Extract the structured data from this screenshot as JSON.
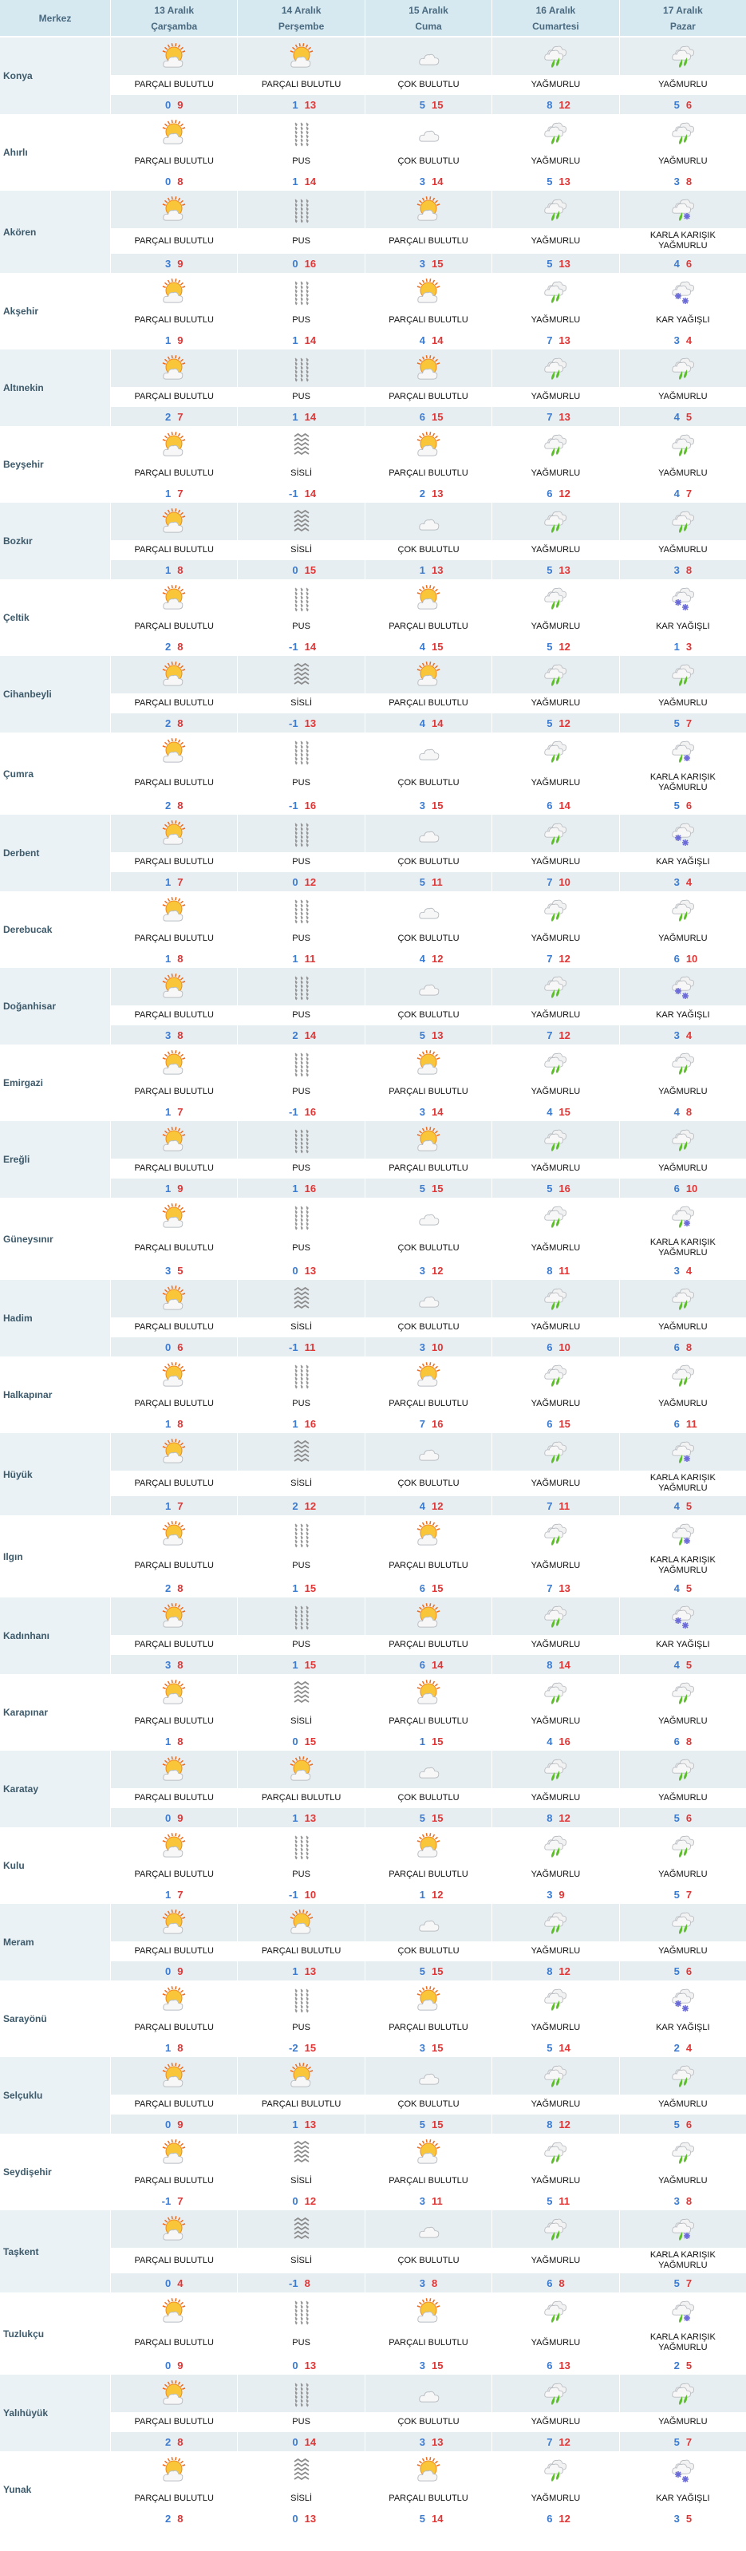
{
  "header": {
    "location_label": "Merkez",
    "days": [
      {
        "date": "13 Aralık",
        "weekday": "Çarşamba"
      },
      {
        "date": "14 Aralık",
        "weekday": "Perşembe"
      },
      {
        "date": "15 Aralık",
        "weekday": "Cuma"
      },
      {
        "date": "16 Aralık",
        "weekday": "Cumartesi"
      },
      {
        "date": "17 Aralık",
        "weekday": "Pazar"
      }
    ]
  },
  "conditions": {
    "P": {
      "desc": "PARÇALI BULUTLU",
      "icon": "partly-cloudy-icon"
    },
    "C": {
      "desc": "ÇOK BULUTLU",
      "icon": "cloudy-icon"
    },
    "U": {
      "desc": "PUS",
      "icon": "haze-icon"
    },
    "S": {
      "desc": "SİSLİ",
      "icon": "fog-icon"
    },
    "Y": {
      "desc": "YAĞMURLU",
      "icon": "rain-icon"
    },
    "K": {
      "desc": "KARLA KARIŞIK YAĞMURLU",
      "icon": "sleet-icon"
    },
    "R": {
      "desc": "KAR YAĞIŞLI",
      "icon": "snow-icon"
    }
  },
  "colors": {
    "min_temp": "#3b7bd0",
    "max_temp": "#e03636",
    "header_bg": "#d6e8f0",
    "alt_row_bg": "#e7eef2"
  },
  "rows": [
    {
      "name": "Konya",
      "days": [
        [
          "P",
          0,
          9
        ],
        [
          "P",
          1,
          13
        ],
        [
          "C",
          5,
          15
        ],
        [
          "Y",
          8,
          12
        ],
        [
          "Y",
          5,
          6
        ]
      ]
    },
    {
      "name": "Ahırlı",
      "days": [
        [
          "P",
          0,
          8
        ],
        [
          "U",
          1,
          14
        ],
        [
          "C",
          3,
          14
        ],
        [
          "Y",
          5,
          13
        ],
        [
          "Y",
          3,
          8
        ]
      ]
    },
    {
      "name": "Akören",
      "days": [
        [
          "P",
          3,
          9
        ],
        [
          "U",
          0,
          16
        ],
        [
          "P",
          3,
          15
        ],
        [
          "Y",
          5,
          13
        ],
        [
          "K",
          4,
          6
        ]
      ]
    },
    {
      "name": "Akşehir",
      "days": [
        [
          "P",
          1,
          9
        ],
        [
          "U",
          1,
          14
        ],
        [
          "P",
          4,
          14
        ],
        [
          "Y",
          7,
          13
        ],
        [
          "R",
          3,
          4
        ]
      ]
    },
    {
      "name": "Altınekin",
      "days": [
        [
          "P",
          2,
          7
        ],
        [
          "U",
          1,
          14
        ],
        [
          "P",
          6,
          15
        ],
        [
          "Y",
          7,
          13
        ],
        [
          "Y",
          4,
          5
        ]
      ]
    },
    {
      "name": "Beyşehir",
      "days": [
        [
          "P",
          1,
          7
        ],
        [
          "S",
          -1,
          14
        ],
        [
          "P",
          2,
          13
        ],
        [
          "Y",
          6,
          12
        ],
        [
          "Y",
          4,
          7
        ]
      ]
    },
    {
      "name": "Bozkır",
      "days": [
        [
          "P",
          1,
          8
        ],
        [
          "S",
          0,
          15
        ],
        [
          "C",
          1,
          13
        ],
        [
          "Y",
          5,
          13
        ],
        [
          "Y",
          3,
          8
        ]
      ]
    },
    {
      "name": "Çeltik",
      "days": [
        [
          "P",
          2,
          8
        ],
        [
          "U",
          -1,
          14
        ],
        [
          "P",
          4,
          15
        ],
        [
          "Y",
          5,
          12
        ],
        [
          "R",
          1,
          3
        ]
      ]
    },
    {
      "name": "Cihanbeyli",
      "days": [
        [
          "P",
          2,
          8
        ],
        [
          "S",
          -1,
          13
        ],
        [
          "P",
          4,
          14
        ],
        [
          "Y",
          5,
          12
        ],
        [
          "Y",
          5,
          7
        ]
      ]
    },
    {
      "name": "Çumra",
      "days": [
        [
          "P",
          2,
          8
        ],
        [
          "U",
          -1,
          16
        ],
        [
          "C",
          3,
          15
        ],
        [
          "Y",
          6,
          14
        ],
        [
          "K",
          5,
          6
        ]
      ]
    },
    {
      "name": "Derbent",
      "days": [
        [
          "P",
          1,
          7
        ],
        [
          "U",
          0,
          12
        ],
        [
          "C",
          5,
          11
        ],
        [
          "Y",
          7,
          10
        ],
        [
          "R",
          3,
          4
        ]
      ]
    },
    {
      "name": "Derebucak",
      "days": [
        [
          "P",
          1,
          8
        ],
        [
          "U",
          1,
          11
        ],
        [
          "C",
          4,
          12
        ],
        [
          "Y",
          7,
          12
        ],
        [
          "Y",
          6,
          10
        ]
      ]
    },
    {
      "name": "Doğanhisar",
      "days": [
        [
          "P",
          3,
          8
        ],
        [
          "U",
          2,
          14
        ],
        [
          "C",
          5,
          13
        ],
        [
          "Y",
          7,
          12
        ],
        [
          "R",
          3,
          4
        ]
      ]
    },
    {
      "name": "Emirgazi",
      "days": [
        [
          "P",
          1,
          7
        ],
        [
          "U",
          -1,
          16
        ],
        [
          "P",
          3,
          14
        ],
        [
          "Y",
          4,
          15
        ],
        [
          "Y",
          4,
          8
        ]
      ]
    },
    {
      "name": "Ereğli",
      "days": [
        [
          "P",
          1,
          9
        ],
        [
          "U",
          1,
          16
        ],
        [
          "P",
          5,
          15
        ],
        [
          "Y",
          5,
          16
        ],
        [
          "Y",
          6,
          10
        ]
      ]
    },
    {
      "name": "Güneysınır",
      "days": [
        [
          "P",
          3,
          5
        ],
        [
          "U",
          0,
          13
        ],
        [
          "C",
          3,
          12
        ],
        [
          "Y",
          8,
          11
        ],
        [
          "K",
          3,
          4
        ]
      ]
    },
    {
      "name": "Hadim",
      "days": [
        [
          "P",
          0,
          6
        ],
        [
          "S",
          -1,
          11
        ],
        [
          "C",
          3,
          10
        ],
        [
          "Y",
          6,
          10
        ],
        [
          "Y",
          6,
          8
        ]
      ]
    },
    {
      "name": "Halkapınar",
      "days": [
        [
          "P",
          1,
          8
        ],
        [
          "U",
          1,
          16
        ],
        [
          "P",
          7,
          16
        ],
        [
          "Y",
          6,
          15
        ],
        [
          "Y",
          6,
          11
        ]
      ]
    },
    {
      "name": "Hüyük",
      "days": [
        [
          "P",
          1,
          7
        ],
        [
          "S",
          2,
          12
        ],
        [
          "C",
          4,
          12
        ],
        [
          "Y",
          7,
          11
        ],
        [
          "K",
          4,
          5
        ]
      ]
    },
    {
      "name": "Ilgın",
      "days": [
        [
          "P",
          2,
          8
        ],
        [
          "U",
          1,
          15
        ],
        [
          "P",
          6,
          15
        ],
        [
          "Y",
          7,
          13
        ],
        [
          "K",
          4,
          5
        ]
      ]
    },
    {
      "name": "Kadınhanı",
      "days": [
        [
          "P",
          3,
          8
        ],
        [
          "U",
          1,
          15
        ],
        [
          "P",
          6,
          14
        ],
        [
          "Y",
          8,
          14
        ],
        [
          "R",
          4,
          5
        ]
      ]
    },
    {
      "name": "Karapınar",
      "days": [
        [
          "P",
          1,
          8
        ],
        [
          "S",
          0,
          15
        ],
        [
          "P",
          1,
          15
        ],
        [
          "Y",
          4,
          16
        ],
        [
          "Y",
          6,
          8
        ]
      ]
    },
    {
      "name": "Karatay",
      "days": [
        [
          "P",
          0,
          9
        ],
        [
          "P",
          1,
          13
        ],
        [
          "C",
          5,
          15
        ],
        [
          "Y",
          8,
          12
        ],
        [
          "Y",
          5,
          6
        ]
      ]
    },
    {
      "name": "Kulu",
      "days": [
        [
          "P",
          1,
          7
        ],
        [
          "U",
          -1,
          10
        ],
        [
          "P",
          1,
          12
        ],
        [
          "Y",
          3,
          9
        ],
        [
          "Y",
          5,
          7
        ]
      ]
    },
    {
      "name": "Meram",
      "days": [
        [
          "P",
          0,
          9
        ],
        [
          "P",
          1,
          13
        ],
        [
          "C",
          5,
          15
        ],
        [
          "Y",
          8,
          12
        ],
        [
          "Y",
          5,
          6
        ]
      ]
    },
    {
      "name": "Sarayönü",
      "days": [
        [
          "P",
          1,
          8
        ],
        [
          "U",
          -2,
          15
        ],
        [
          "P",
          3,
          15
        ],
        [
          "Y",
          5,
          14
        ],
        [
          "R",
          2,
          4
        ]
      ]
    },
    {
      "name": "Selçuklu",
      "days": [
        [
          "P",
          0,
          9
        ],
        [
          "P",
          1,
          13
        ],
        [
          "C",
          5,
          15
        ],
        [
          "Y",
          8,
          12
        ],
        [
          "Y",
          5,
          6
        ]
      ]
    },
    {
      "name": "Seydişehir",
      "days": [
        [
          "P",
          -1,
          7
        ],
        [
          "S",
          0,
          12
        ],
        [
          "P",
          3,
          11
        ],
        [
          "Y",
          5,
          11
        ],
        [
          "Y",
          3,
          8
        ]
      ]
    },
    {
      "name": "Taşkent",
      "days": [
        [
          "P",
          0,
          4
        ],
        [
          "S",
          -1,
          8
        ],
        [
          "C",
          3,
          8
        ],
        [
          "Y",
          6,
          8
        ],
        [
          "K",
          5,
          7
        ]
      ]
    },
    {
      "name": "Tuzlukçu",
      "days": [
        [
          "P",
          0,
          9
        ],
        [
          "U",
          0,
          13
        ],
        [
          "P",
          3,
          15
        ],
        [
          "Y",
          6,
          13
        ],
        [
          "K",
          2,
          5
        ]
      ]
    },
    {
      "name": "Yalıhüyük",
      "days": [
        [
          "P",
          2,
          8
        ],
        [
          "U",
          0,
          14
        ],
        [
          "C",
          3,
          13
        ],
        [
          "Y",
          7,
          12
        ],
        [
          "Y",
          5,
          7
        ]
      ]
    },
    {
      "name": "Yunak",
      "days": [
        [
          "P",
          2,
          8
        ],
        [
          "S",
          0,
          13
        ],
        [
          "P",
          5,
          14
        ],
        [
          "Y",
          6,
          12
        ],
        [
          "R",
          3,
          5
        ]
      ]
    }
  ]
}
